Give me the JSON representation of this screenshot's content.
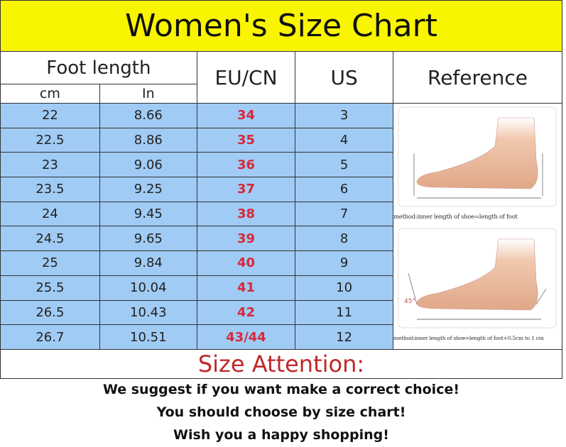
{
  "title": "Women's Size Chart",
  "headers": {
    "foot_length": "Foot length",
    "cm": "cm",
    "in": "In",
    "eu": "EU/CN",
    "us": "US",
    "reference": "Reference"
  },
  "rows": [
    {
      "cm": "22",
      "in": "8.66",
      "eu": "34",
      "us": "3"
    },
    {
      "cm": "22.5",
      "in": "8.86",
      "eu": "35",
      "us": "4"
    },
    {
      "cm": "23",
      "in": "9.06",
      "eu": "36",
      "us": "5"
    },
    {
      "cm": "23.5",
      "in": "9.25",
      "eu": "37",
      "us": "6"
    },
    {
      "cm": "24",
      "in": "9.45",
      "eu": "38",
      "us": "7"
    },
    {
      "cm": "24.5",
      "in": "9.65",
      "eu": "39",
      "us": "8"
    },
    {
      "cm": "25",
      "in": "9.84",
      "eu": "40",
      "us": "9"
    },
    {
      "cm": "25.5",
      "in": "10.04",
      "eu": "41",
      "us": "10"
    },
    {
      "cm": "26.5",
      "in": "10.43",
      "eu": "42",
      "us": "11"
    },
    {
      "cm": "26.7",
      "in": "10.51",
      "eu": "43/44",
      "us": "12"
    }
  ],
  "reference": {
    "caption1": "method:inner length of shoe=length of foot",
    "caption2": "method:inner length of shoe=length of foot+0.5cm to 1 cm",
    "angle": "45°"
  },
  "attention": {
    "title": "Size Attention:",
    "lines": [
      "We suggest if you want make a correct choice!",
      "You should choose by size chart!",
      "Wish you a happy shopping!"
    ]
  },
  "colors": {
    "title_bg": "#f9f400",
    "row_bg": "#a0cbf4",
    "eu_text": "#d42a3c",
    "attention_text": "#c0282a"
  }
}
